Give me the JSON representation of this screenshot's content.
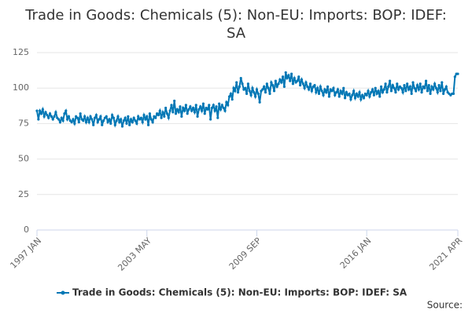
{
  "chart_data": {
    "type": "line",
    "title": "Trade in Goods: Chemicals (5): Non-EU: Imports: BOP: IDEF: SA",
    "source": "Source:",
    "categories": [
      "1997 JAN",
      null,
      null,
      null,
      null,
      null,
      null,
      null,
      null,
      null,
      null,
      null,
      null,
      null,
      null,
      null,
      null,
      null,
      null,
      null,
      null,
      null,
      null,
      null,
      null,
      null,
      null,
      null,
      null,
      null,
      null,
      null,
      null,
      null,
      null,
      null,
      null,
      null,
      null,
      null,
      null,
      null,
      null,
      null,
      null,
      null,
      null,
      null,
      null,
      null,
      null,
      null,
      null,
      null,
      null,
      null,
      null,
      null,
      null,
      null,
      null,
      null,
      null,
      null,
      null,
      null,
      null,
      null,
      null,
      null,
      null,
      null,
      null,
      null,
      null,
      null,
      "2003 MAY",
      null,
      null,
      null,
      null,
      null,
      null,
      null,
      null,
      null,
      null,
      null,
      null,
      null,
      null,
      null,
      null,
      null,
      null,
      null,
      null,
      null,
      null,
      null,
      null,
      null,
      null,
      null,
      null,
      null,
      null,
      null,
      null,
      null,
      null,
      null,
      null,
      null,
      null,
      null,
      null,
      null,
      null,
      null,
      null,
      null,
      null,
      null,
      null,
      null,
      null,
      null,
      null,
      null,
      null,
      null,
      null,
      null,
      null,
      null,
      null,
      null,
      null,
      null,
      null,
      null,
      null,
      null,
      null,
      null,
      null,
      null,
      null,
      null,
      null,
      null,
      "2009 SEP",
      null,
      null,
      null,
      null,
      null,
      null,
      null,
      null,
      null,
      null,
      null,
      null,
      null,
      null,
      null,
      null,
      null,
      null,
      null,
      null,
      null,
      null,
      null,
      null,
      null,
      null,
      null,
      null,
      null,
      null,
      null,
      null,
      null,
      null,
      null,
      null,
      null,
      null,
      null,
      null,
      null,
      null,
      null,
      null,
      null,
      null,
      null,
      null,
      null,
      null,
      null,
      null,
      null,
      null,
      null,
      null,
      null,
      null,
      null,
      null,
      null,
      null,
      null,
      null,
      null,
      null,
      null,
      null,
      null,
      null,
      null,
      null,
      null,
      null,
      null,
      "2016 JAN",
      null,
      null,
      null,
      null,
      null,
      null,
      null,
      null,
      null,
      null,
      null,
      null,
      null,
      null,
      null,
      null,
      null,
      null,
      null,
      null,
      null,
      null,
      null,
      null,
      null,
      null,
      null,
      null,
      null,
      null,
      null,
      null,
      null,
      null,
      null,
      null,
      null,
      null,
      null,
      null,
      null,
      null,
      null,
      null,
      null,
      null,
      null,
      null,
      null,
      null,
      null,
      null,
      null,
      null,
      null,
      null,
      null,
      null,
      null,
      null,
      null,
      null,
      "2021 APR"
    ],
    "series": [
      {
        "name": "Trade in Goods: Chemicals (5): Non-EU: Imports: BOP: IDEF: SA",
        "color": "#0077b5",
        "values": [
          84,
          78,
          84,
          82,
          85,
          80,
          83,
          81,
          79,
          82,
          80,
          78,
          80,
          83,
          79,
          78,
          76,
          79,
          77,
          82,
          84,
          78,
          80,
          77,
          76,
          78,
          75,
          80,
          79,
          76,
          82,
          78,
          77,
          80,
          76,
          79,
          76,
          80,
          78,
          74,
          79,
          81,
          76,
          78,
          80,
          74,
          77,
          79,
          80,
          76,
          78,
          75,
          81,
          79,
          74,
          77,
          80,
          76,
          78,
          73,
          77,
          79,
          75,
          80,
          74,
          78,
          76,
          79,
          77,
          75,
          80,
          78,
          79,
          76,
          81,
          78,
          80,
          74,
          82,
          78,
          76,
          80,
          79,
          82,
          81,
          84,
          79,
          83,
          80,
          86,
          82,
          79,
          84,
          88,
          83,
          91,
          82,
          85,
          83,
          87,
          80,
          86,
          84,
          88,
          82,
          85,
          87,
          84,
          86,
          83,
          88,
          80,
          85,
          87,
          84,
          89,
          82,
          86,
          85,
          88,
          78,
          86,
          88,
          84,
          87,
          79,
          89,
          85,
          88,
          86,
          84,
          90,
          88,
          94,
          96,
          92,
          100,
          98,
          104,
          97,
          101,
          107,
          103,
          99,
          100,
          96,
          103,
          98,
          95,
          100,
          97,
          94,
          99,
          96,
          90,
          98,
          99,
          101,
          97,
          103,
          100,
          96,
          104,
          102,
          98,
          105,
          101,
          103,
          106,
          104,
          108,
          101,
          111,
          107,
          109,
          105,
          110,
          103,
          107,
          104,
          105,
          108,
          102,
          106,
          103,
          100,
          104,
          101,
          99,
          103,
          98,
          101,
          102,
          97,
          100,
          96,
          101,
          98,
          95,
          99,
          97,
          101,
          94,
          99,
          98,
          100,
          95,
          97,
          99,
          94,
          98,
          96,
          100,
          93,
          97,
          95,
          96,
          92,
          95,
          98,
          93,
          96,
          94,
          97,
          92,
          95,
          93,
          96,
          95,
          98,
          94,
          97,
          99,
          95,
          100,
          96,
          98,
          94,
          101,
          97,
          99,
          103,
          97,
          101,
          105,
          98,
          102,
          100,
          97,
          103,
          99,
          101,
          100,
          97,
          102,
          98,
          103,
          99,
          101,
          96,
          104,
          100,
          98,
          102,
          99,
          103,
          97,
          101,
          100,
          105,
          98,
          102,
          96,
          101,
          99,
          103,
          100,
          97,
          102,
          98,
          104,
          96,
          99,
          101,
          97,
          96,
          95,
          96,
          96,
          108,
          110,
          110
        ]
      }
    ],
    "ylim": [
      0,
      125
    ],
    "yticks": [
      0,
      25,
      50,
      75,
      100,
      125
    ],
    "grid": true,
    "legend": "bottom"
  }
}
